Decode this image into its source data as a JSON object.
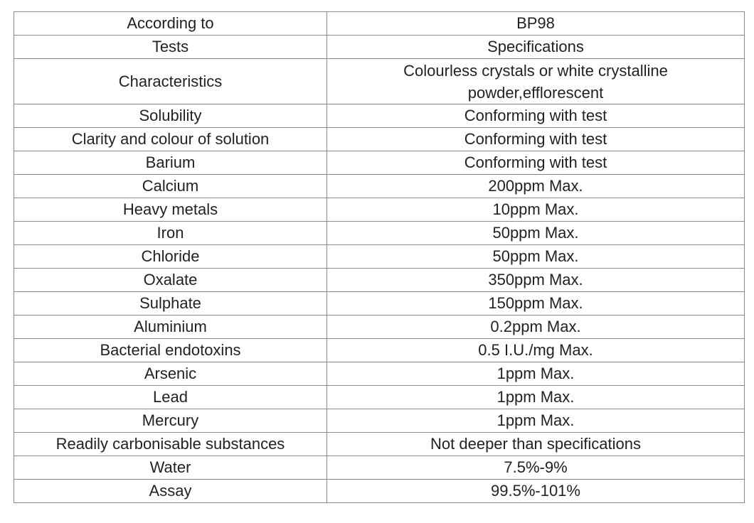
{
  "header": {
    "col1": "According to",
    "col2": "BP98"
  },
  "subheader": {
    "col1": "Tests",
    "col2": "Specifications"
  },
  "characteristics": {
    "test": "Characteristics",
    "spec_line1": "Colourless crystals or white crystalline",
    "spec_line2": "powder,efflorescent"
  },
  "rows": [
    {
      "test": "Solubility",
      "spec": "Conforming with test"
    },
    {
      "test": "Clarity and colour of solution",
      "spec": "Conforming with test"
    },
    {
      "test": "Barium",
      "spec": "Conforming with test"
    },
    {
      "test": "Calcium",
      "spec": "200ppm Max."
    },
    {
      "test": "Heavy metals",
      "spec": "10ppm Max."
    },
    {
      "test": "Iron",
      "spec": "50ppm Max."
    },
    {
      "test": "Chloride",
      "spec": "50ppm Max."
    },
    {
      "test": "Oxalate",
      "spec": "350ppm Max."
    },
    {
      "test": "Sulphate",
      "spec": "150ppm Max."
    },
    {
      "test": "Aluminium",
      "spec": "0.2ppm Max."
    },
    {
      "test": "Bacterial endotoxins",
      "spec": "0.5 I.U./mg Max."
    },
    {
      "test": "Arsenic",
      "spec": "1ppm Max."
    },
    {
      "test": "Lead",
      "spec": "1ppm Max."
    },
    {
      "test": "Mercury",
      "spec": "1ppm Max."
    },
    {
      "test": "Readily carbonisable substances",
      "spec": "Not deeper than specifications"
    },
    {
      "test": "Water",
      "spec": "7.5%-9%"
    },
    {
      "test": "Assay",
      "spec": "99.5%-101%"
    }
  ]
}
